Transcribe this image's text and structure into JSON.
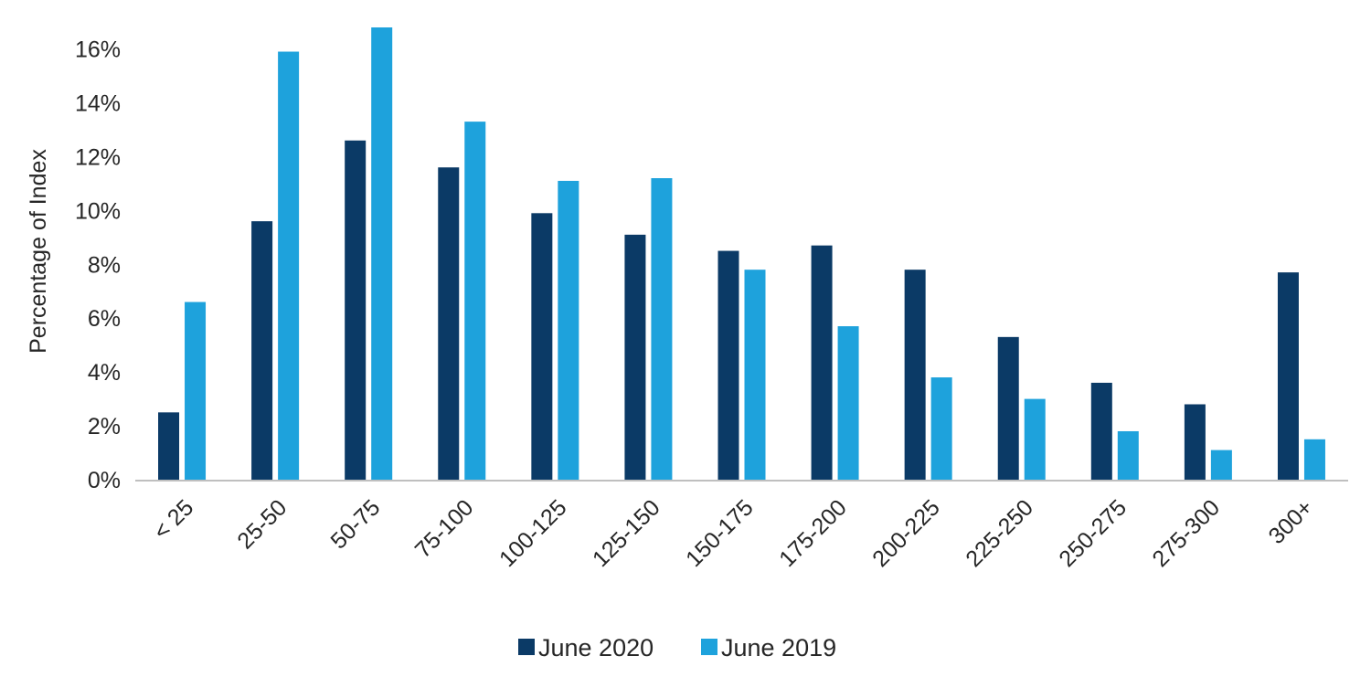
{
  "colors": {
    "series_1": "#0b3a66",
    "series_2": "#1ea2dc",
    "axis": "#bfbfbf",
    "text": "#262626"
  },
  "chart_data": {
    "type": "bar",
    "title": "",
    "xlabel": "",
    "ylabel": "Percentage of Index",
    "categories": [
      "< 25",
      "25-50",
      "50-75",
      "75-100",
      "100-125",
      "125-150",
      "150-175",
      "175-200",
      "200-225",
      "225-250",
      "250-275",
      "275-300",
      "300+"
    ],
    "series": [
      {
        "name": "June 2020",
        "color": "#0b3a66",
        "values": [
          2.5,
          9.6,
          12.6,
          11.6,
          9.9,
          9.1,
          8.5,
          8.7,
          7.8,
          5.3,
          3.6,
          2.8,
          7.7
        ]
      },
      {
        "name": "June 2019",
        "color": "#1ea2dc",
        "values": [
          6.6,
          15.9,
          16.8,
          13.3,
          11.1,
          11.2,
          7.8,
          5.7,
          3.8,
          3.0,
          1.8,
          1.1,
          1.5
        ]
      }
    ],
    "ylim": [
      0,
      16.8
    ],
    "yticks": [
      0,
      2,
      4,
      6,
      8,
      10,
      12,
      14,
      16
    ],
    "ytick_labels": [
      "0%",
      "2%",
      "4%",
      "6%",
      "8%",
      "10%",
      "12%",
      "14%",
      "16%"
    ],
    "grid": false,
    "legend_position": "bottom-center"
  }
}
